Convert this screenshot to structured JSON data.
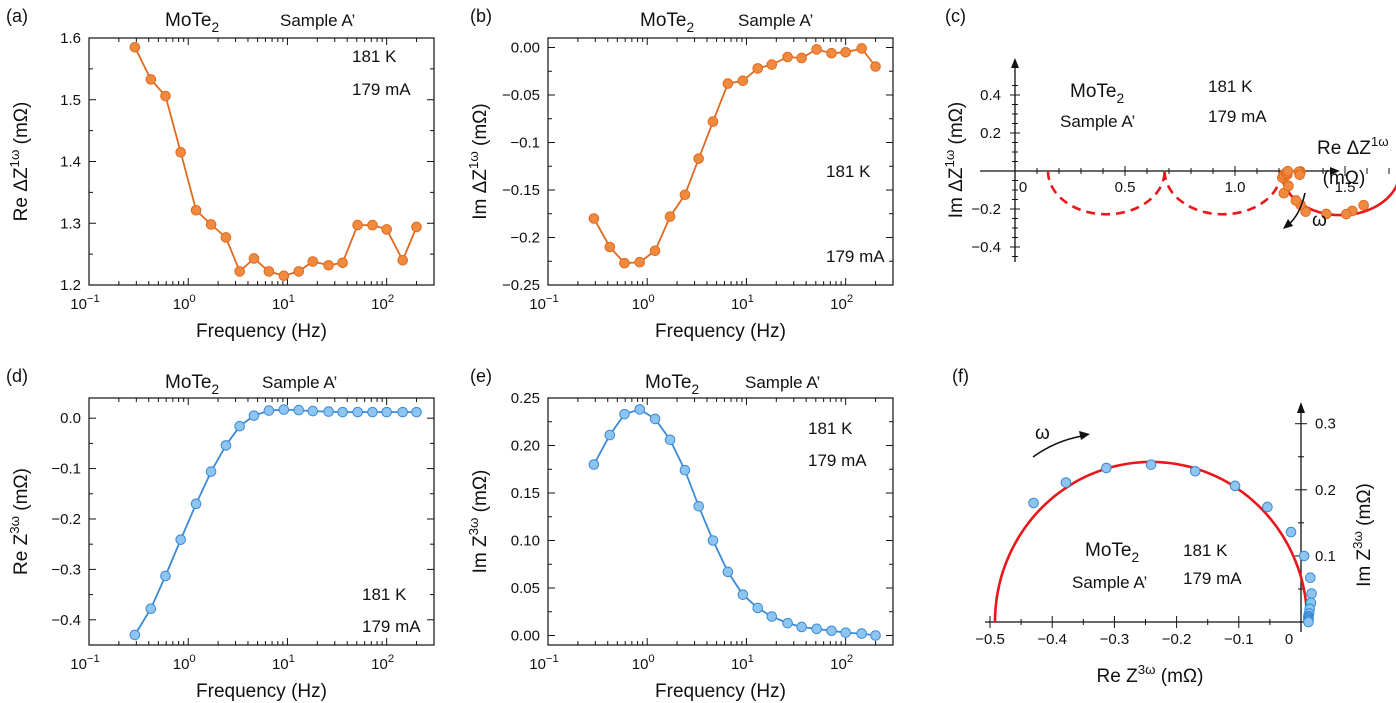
{
  "figure": {
    "colors": {
      "orange": "#f08a3e",
      "orange_edge": "#e06a1f",
      "blue": "#8ec5f0",
      "blue_edge": "#3a8ad6",
      "fit": "#e8171b"
    }
  },
  "chart_data": [
    {
      "id": "a",
      "type": "line",
      "panel_label": "(a)",
      "title": "MoTe",
      "title_sub": "2",
      "subtitle": "Sample A’",
      "annotations": [
        "181 K",
        "179 mA"
      ],
      "xlabel": "Frequency (Hz)",
      "ylabel": "Re ΔZ",
      "ylabel_sup": "1ω",
      "ylabel_unit": " (mΩ)",
      "xscale": "log",
      "xlim": [
        0.1,
        300
      ],
      "ylim": [
        1.2,
        1.6
      ],
      "xticks": [
        0.1,
        1,
        10,
        100
      ],
      "xticklabels": [
        "10",
        "10",
        "10",
        "10"
      ],
      "xtick_exponents": [
        "−1",
        "0",
        "1",
        "2"
      ],
      "yticks": [
        1.2,
        1.3,
        1.4,
        1.5,
        1.6
      ],
      "yticklabels": [
        "1.2",
        "1.3",
        "1.4",
        "1.5",
        "1.6"
      ],
      "series": [
        {
          "name": "Re ΔZ1ω",
          "color": "orange",
          "x": [
            0.29,
            0.42,
            0.59,
            0.84,
            1.2,
            1.7,
            2.4,
            3.3,
            4.6,
            6.5,
            9.2,
            13,
            18,
            26,
            36,
            51,
            72,
            100,
            145,
            200
          ],
          "y": [
            1.585,
            1.533,
            1.506,
            1.415,
            1.321,
            1.298,
            1.277,
            1.222,
            1.243,
            1.222,
            1.215,
            1.222,
            1.238,
            1.232,
            1.236,
            1.297,
            1.297,
            1.29,
            1.24,
            1.294
          ]
        }
      ]
    },
    {
      "id": "b",
      "type": "line",
      "panel_label": "(b)",
      "title": "MoTe",
      "title_sub": "2",
      "subtitle": "Sample A’",
      "annotations": [
        "181 K",
        "179 mA"
      ],
      "xlabel": "Frequency (Hz)",
      "ylabel": "Im ΔZ",
      "ylabel_sup": "1ω",
      "ylabel_unit": " (mΩ)",
      "xscale": "log",
      "xlim": [
        0.1,
        300
      ],
      "ylim": [
        -0.25,
        0.01
      ],
      "xticks": [
        0.1,
        1,
        10,
        100
      ],
      "xticklabels": [
        "10",
        "10",
        "10",
        "10"
      ],
      "xtick_exponents": [
        "−1",
        "0",
        "1",
        "2"
      ],
      "yticks": [
        -0.25,
        -0.2,
        -0.15,
        -0.1,
        -0.05,
        0
      ],
      "yticklabels": [
        "−0.25",
        "−0.2",
        "−0.15",
        "−0.1",
        "−0.05",
        "0.00"
      ],
      "series": [
        {
          "name": "Im ΔZ1ω",
          "color": "orange",
          "x": [
            0.29,
            0.42,
            0.59,
            0.84,
            1.2,
            1.7,
            2.4,
            3.3,
            4.6,
            6.5,
            9.2,
            13,
            18,
            26,
            36,
            51,
            72,
            100,
            145,
            200
          ],
          "y": [
            -0.18,
            -0.21,
            -0.227,
            -0.226,
            -0.214,
            -0.178,
            -0.155,
            -0.117,
            -0.078,
            -0.038,
            -0.035,
            -0.022,
            -0.018,
            -0.01,
            -0.011,
            -0.002,
            -0.006,
            -0.005,
            -0.001,
            -0.02
          ]
        }
      ]
    },
    {
      "id": "c",
      "type": "scatter",
      "panel_label": "(c)",
      "title": "MoTe",
      "title_sub": "2",
      "subtitle": "Sample A’",
      "annotations": [
        "181 K",
        "179 mA"
      ],
      "xlabel": "Re ΔZ",
      "xlabel_sup": "1ω",
      "xlabel_unit": "(mΩ)",
      "ylabel": "Im ΔZ",
      "ylabel_sup": "1ω",
      "ylabel_unit": " (mΩ)",
      "arrow_label": "ω",
      "xlim": [
        -0.1,
        1.8
      ],
      "ylim": [
        -0.5,
        0.55
      ],
      "xticks": [
        0,
        0.5,
        1.0,
        1.5
      ],
      "xticklabels": [
        "0",
        "0.5",
        "1.0",
        "1.5"
      ],
      "yticks": [
        -0.4,
        -0.2,
        0.2,
        0.4
      ],
      "yticklabels": [
        "−0.4",
        "−0.2",
        "0.2",
        "0.4"
      ],
      "fit_arcs": [
        {
          "style": "dashed",
          "from": 0.15,
          "to": 0.68
        },
        {
          "style": "dashed",
          "from": 0.68,
          "to": 1.21
        },
        {
          "style": "solid",
          "from": 1.21,
          "to": 1.75
        }
      ],
      "series": [
        {
          "name": "data",
          "color": "orange",
          "x": [
            1.585,
            1.533,
            1.506,
            1.415,
            1.321,
            1.298,
            1.277,
            1.222,
            1.243,
            1.222,
            1.215,
            1.222,
            1.238,
            1.232,
            1.236,
            1.297,
            1.297,
            1.29,
            1.24,
            1.294
          ],
          "y": [
            -0.18,
            -0.21,
            -0.227,
            -0.226,
            -0.214,
            -0.178,
            -0.155,
            -0.117,
            -0.078,
            -0.038,
            -0.035,
            -0.022,
            -0.018,
            -0.01,
            -0.011,
            -0.002,
            -0.006,
            -0.005,
            -0.001,
            -0.02
          ]
        }
      ]
    },
    {
      "id": "d",
      "type": "line",
      "panel_label": "(d)",
      "title": "MoTe",
      "title_sub": "2",
      "subtitle": "Sample A’",
      "annotations": [
        "181 K",
        "179 mA"
      ],
      "xlabel": "Frequency (Hz)",
      "ylabel": "Re Z",
      "ylabel_sup": "3ω",
      "ylabel_unit": " (mΩ)",
      "xscale": "log",
      "xlim": [
        0.1,
        300
      ],
      "ylim": [
        -0.45,
        0.04
      ],
      "xticks": [
        0.1,
        1,
        10,
        100
      ],
      "xticklabels": [
        "10",
        "10",
        "10",
        "10"
      ],
      "xtick_exponents": [
        "−1",
        "0",
        "1",
        "2"
      ],
      "yticks": [
        -0.4,
        -0.3,
        -0.2,
        -0.1,
        0
      ],
      "yticklabels": [
        "−0.4",
        "−0.3",
        "−0.2",
        "−0.1",
        "0.0"
      ],
      "series": [
        {
          "name": "Re Z3ω",
          "color": "blue",
          "x": [
            0.29,
            0.42,
            0.59,
            0.84,
            1.2,
            1.7,
            2.4,
            3.3,
            4.6,
            6.5,
            9.2,
            13,
            18,
            26,
            36,
            51,
            72,
            100,
            145,
            200
          ],
          "y": [
            -0.43,
            -0.378,
            -0.313,
            -0.241,
            -0.17,
            -0.106,
            -0.054,
            -0.016,
            0.005,
            0.015,
            0.017,
            0.016,
            0.014,
            0.013,
            0.012,
            0.012,
            0.012,
            0.012,
            0.012,
            0.012
          ]
        }
      ]
    },
    {
      "id": "e",
      "type": "line",
      "panel_label": "(e)",
      "title": "MoTe",
      "title_sub": "2",
      "subtitle": "Sample A’",
      "annotations": [
        "181 K",
        "179 mA"
      ],
      "xlabel": "Frequency (Hz)",
      "ylabel": "Im Z",
      "ylabel_sup": "3ω",
      "ylabel_unit": " (mΩ)",
      "xscale": "log",
      "xlim": [
        0.1,
        300
      ],
      "ylim": [
        -0.01,
        0.25
      ],
      "xticks": [
        0.1,
        1,
        10,
        100
      ],
      "xticklabels": [
        "10",
        "10",
        "10",
        "10"
      ],
      "xtick_exponents": [
        "−1",
        "0",
        "1",
        "2"
      ],
      "yticks": [
        0,
        0.05,
        0.1,
        0.15,
        0.2,
        0.25
      ],
      "yticklabels": [
        "0.00",
        "0.05",
        "0.10",
        "0.15",
        "0.20",
        "0.25"
      ],
      "series": [
        {
          "name": "Im Z3ω",
          "color": "blue",
          "x": [
            0.29,
            0.42,
            0.59,
            0.84,
            1.2,
            1.7,
            2.4,
            3.3,
            4.6,
            6.5,
            9.2,
            13,
            18,
            26,
            36,
            51,
            72,
            100,
            145,
            200
          ],
          "y": [
            0.18,
            0.211,
            0.233,
            0.238,
            0.228,
            0.206,
            0.174,
            0.136,
            0.1,
            0.067,
            0.043,
            0.029,
            0.02,
            0.013,
            0.009,
            0.007,
            0.005,
            0.003,
            0.002,
            0.0
          ]
        }
      ]
    },
    {
      "id": "f",
      "type": "scatter",
      "panel_label": "(f)",
      "title": "MoTe",
      "title_sub": "2",
      "subtitle": "Sample A’",
      "annotations": [
        "181 K",
        "179 mA"
      ],
      "xlabel": "Re Z",
      "xlabel_sup": "3ω",
      "xlabel_unit": "  (mΩ)",
      "ylabel": "Im Z",
      "ylabel_sup": "3ω",
      "ylabel_unit": " (mΩ)",
      "arrow_label": "ω",
      "xlim": [
        -0.5,
        0.02
      ],
      "ylim": [
        0,
        0.32
      ],
      "xticks": [
        -0.5,
        -0.4,
        -0.3,
        -0.2,
        -0.1,
        0
      ],
      "xticklabels": [
        "−0.5",
        "−0.4",
        "−0.3",
        "−0.2",
        "−0.1",
        "0"
      ],
      "yticks": [
        0.1,
        0.2,
        0.3
      ],
      "yticklabels": [
        "0.1",
        "0.2",
        "0.3"
      ],
      "fit_arcs": [
        {
          "style": "solid",
          "center": -0.241,
          "radius": 0.251
        }
      ],
      "series": [
        {
          "name": "data",
          "color": "blue",
          "x": [
            -0.43,
            -0.378,
            -0.313,
            -0.241,
            -0.17,
            -0.106,
            -0.054,
            -0.016,
            0.005,
            0.015,
            0.017,
            0.016,
            0.014,
            0.013,
            0.012,
            0.012,
            0.012,
            0.012,
            0.012,
            0.012
          ],
          "y": [
            0.18,
            0.211,
            0.233,
            0.238,
            0.228,
            0.206,
            0.174,
            0.136,
            0.1,
            0.067,
            0.043,
            0.029,
            0.02,
            0.013,
            0.009,
            0.007,
            0.005,
            0.003,
            0.002,
            0.0
          ]
        }
      ]
    }
  ]
}
